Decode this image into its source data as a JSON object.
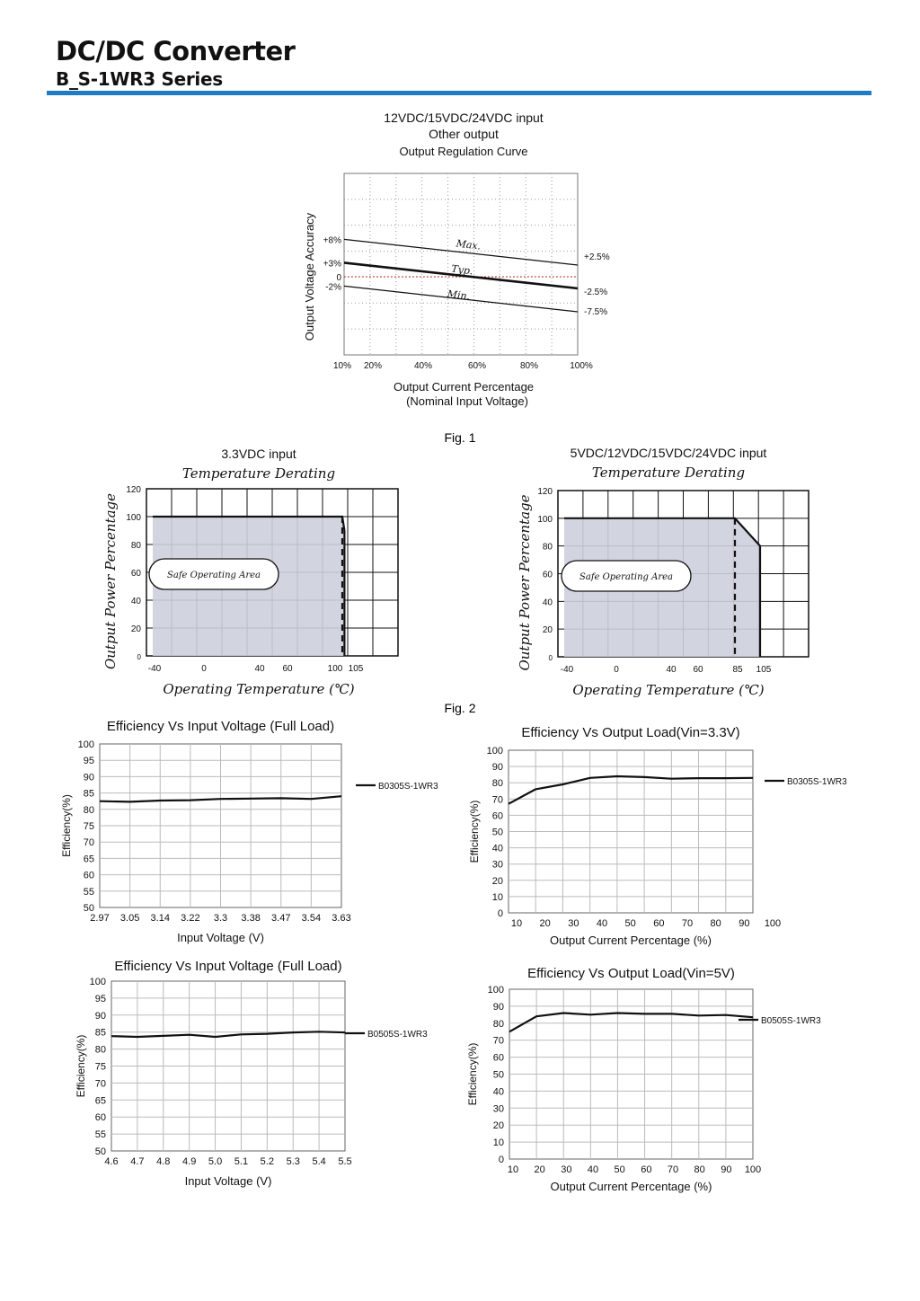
{
  "header": {
    "title": "DC/DC Converter",
    "subtitle": "B_S-1WR3 Series"
  },
  "figure_labels": {
    "fig1": "Fig. 1",
    "fig2": "Fig. 2"
  },
  "chart_data": [
    {
      "id": "regulation",
      "type": "line",
      "title_lines": [
        "12VDC/15VDC/24VDC input",
        "Other output"
      ],
      "subtitle": "Output Regulation Curve",
      "xlabel": "Output Current Percentage",
      "xlabel2": "(Nominal Input Voltage)",
      "ylabel": "Output Voltage Accuracy",
      "x_ticks": [
        "10%",
        "20%",
        "40%",
        "60%",
        "80%",
        "100%"
      ],
      "left_labels": [
        "+8%",
        "+3%",
        "0",
        "-2%"
      ],
      "right_labels": [
        "+2.5%",
        "-2.5%",
        "-7.5%"
      ],
      "series": [
        {
          "name": "Max.",
          "x": [
            10,
            100
          ],
          "y": [
            8,
            2.5
          ]
        },
        {
          "name": "Typ.",
          "x": [
            10,
            100
          ],
          "y": [
            3,
            -2.5
          ]
        },
        {
          "name": "Min.",
          "x": [
            10,
            100
          ],
          "y": [
            -2,
            -7.5
          ]
        }
      ],
      "zero_line": true,
      "grid": true
    },
    {
      "id": "derate33",
      "type": "area",
      "title": "3.3VDC input",
      "subtitle": "Temperature Derating",
      "xlabel": "Operating Temperature (℃)",
      "ylabel": "Output Power Percentage",
      "x_ticks": [
        "-40",
        "0",
        "40",
        "60",
        "100",
        "105"
      ],
      "y_ticks": [
        "0",
        "20",
        "40",
        "60",
        "80",
        "100",
        "120"
      ],
      "region_label": "Safe Operating Area",
      "x": [
        -40,
        100,
        102
      ],
      "y": [
        100,
        100,
        90
      ],
      "dashed_x": 100
    },
    {
      "id": "derate5",
      "type": "area",
      "title": "5VDC/12VDC/15VDC/24VDC input",
      "subtitle": "Temperature Derating",
      "xlabel": "Operating Temperature (℃)",
      "ylabel": "Output Power Percentage",
      "x_ticks": [
        "-40",
        "0",
        "40",
        "60",
        "85",
        "105"
      ],
      "y_ticks": [
        "0",
        "20",
        "40",
        "60",
        "80",
        "100",
        "120"
      ],
      "region_label": "Safe Operating Area",
      "x": [
        -40,
        85,
        105
      ],
      "y": [
        100,
        100,
        80
      ],
      "dashed_x": 85
    },
    {
      "id": "eff_vin_33",
      "type": "line",
      "title": "Efficiency Vs Input Voltage (Full Load)",
      "xlabel": "Input Voltage (V)",
      "ylabel": "Efficiency(%)",
      "categories": [
        "2.97",
        "3.05",
        "3.14",
        "3.22",
        "3.3",
        "3.38",
        "3.47",
        "3.54",
        "3.63"
      ],
      "y_ticks": [
        "50",
        "55",
        "60",
        "65",
        "70",
        "75",
        "80",
        "85",
        "90",
        "95",
        "100"
      ],
      "ylim": [
        50,
        100
      ],
      "series": [
        {
          "name": "B0305S-1WR3",
          "values": [
            82.5,
            82.3,
            82.7,
            82.8,
            83.2,
            83.3,
            83.4,
            83.2,
            84.0
          ]
        }
      ]
    },
    {
      "id": "eff_load_33",
      "type": "line",
      "title": "Efficiency Vs Output Load(Vin=3.3V)",
      "xlabel": "Output Current Percentage (%)",
      "ylabel": "Efficiency(%)",
      "categories": [
        "10",
        "20",
        "30",
        "40",
        "50",
        "60",
        "70",
        "80",
        "90",
        "100"
      ],
      "y_ticks": [
        "0",
        "10",
        "20",
        "30",
        "40",
        "50",
        "60",
        "70",
        "80",
        "90",
        "100"
      ],
      "ylim": [
        0,
        100
      ],
      "series": [
        {
          "name": "B0305S-1WR3",
          "values": [
            67,
            76,
            79,
            83,
            84,
            83.5,
            82.5,
            82.8,
            82.8,
            83
          ]
        }
      ]
    },
    {
      "id": "eff_vin_5",
      "type": "line",
      "title": "Efficiency Vs Input Voltage (Full Load)",
      "xlabel": "Input Voltage (V)",
      "ylabel": "Efficiency(%)",
      "categories": [
        "4.6",
        "4.7",
        "4.8",
        "4.9",
        "5.0",
        "5.1",
        "5.2",
        "5.3",
        "5.4",
        "5.5"
      ],
      "y_ticks": [
        "50",
        "55",
        "60",
        "65",
        "70",
        "75",
        "80",
        "85",
        "90",
        "95",
        "100"
      ],
      "ylim": [
        50,
        100
      ],
      "series": [
        {
          "name": "B0505S-1WR3",
          "values": [
            83.8,
            83.6,
            83.9,
            84.2,
            83.6,
            84.3,
            84.5,
            84.9,
            85.1,
            84.9
          ]
        }
      ]
    },
    {
      "id": "eff_load_5",
      "type": "line",
      "title": "Efficiency Vs Output Load(Vin=5V)",
      "xlabel": "Output Current Percentage (%)",
      "ylabel": "Efficiency(%)",
      "categories": [
        "10",
        "20",
        "30",
        "40",
        "50",
        "60",
        "70",
        "80",
        "90",
        "100"
      ],
      "y_ticks": [
        "0",
        "10",
        "20",
        "30",
        "40",
        "50",
        "60",
        "70",
        "80",
        "90",
        "100"
      ],
      "ylim": [
        0,
        100
      ],
      "series": [
        {
          "name": "B0505S-1WR3",
          "values": [
            75,
            84,
            86,
            85,
            86,
            85.5,
            85.5,
            84.5,
            84.8,
            83.5
          ]
        }
      ]
    }
  ]
}
